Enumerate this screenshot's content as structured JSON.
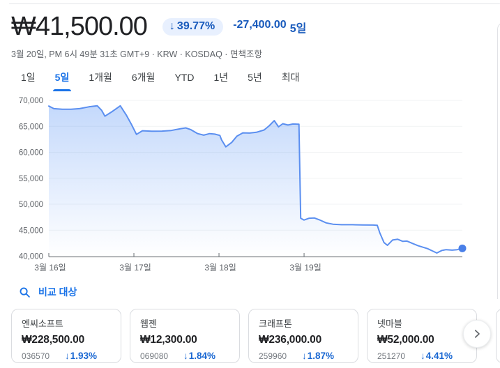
{
  "header": {
    "price": "₩41,500.00",
    "change_badge": {
      "arrow": "↓",
      "percent": "39.77%"
    },
    "change_amount": "-27,400.00",
    "change_period": "5일",
    "subtitle_main": "3월 20일, PM 6시 49분 31초 GMT+9 · KRW · KOSDAQ ·",
    "disclaimer_link": "면책조항"
  },
  "tabs": {
    "items": [
      {
        "label": "1일"
      },
      {
        "label": "5일",
        "active": true
      },
      {
        "label": "1개월"
      },
      {
        "label": "6개월"
      },
      {
        "label": "YTD"
      },
      {
        "label": "1년"
      },
      {
        "label": "5년"
      },
      {
        "label": "최대"
      }
    ]
  },
  "compare": {
    "title": "비교 대상",
    "search_icon": "magnifier",
    "next_button_icon": "chevron-right",
    "cards": [
      {
        "name": "엔씨소프트",
        "price": "₩228,500.00",
        "code": "036570",
        "arrow": "↓",
        "change": "1.93%"
      },
      {
        "name": "웹젠",
        "price": "₩12,300.00",
        "code": "069080",
        "arrow": "↓",
        "change": "1.84%"
      },
      {
        "name": "크래프톤",
        "price": "₩236,000.00",
        "code": "259960",
        "arrow": "↓",
        "change": "1.87%"
      },
      {
        "name": "넷마블",
        "price": "₩52,000.00",
        "code": "251270",
        "arrow": "↓",
        "change": "4.41%"
      }
    ]
  },
  "colors": {
    "accent_blue": "#1a73e8",
    "down_blue": "#185abc",
    "card_change_blue": "#1967d2",
    "badge_bg": "#e8f0fe",
    "text_dark": "#202124",
    "text_gray": "#5f6368"
  },
  "chart_data": {
    "type": "area",
    "title": "",
    "xlabel": "",
    "ylabel": "",
    "x_unit": "days (0 = 3월 16일 open)",
    "x_range": [
      0,
      4.86
    ],
    "ylim": [
      40000,
      70000
    ],
    "grid": true,
    "legend": "none",
    "y_ticks": [
      40000,
      45000,
      50000,
      55000,
      60000,
      65000,
      70000
    ],
    "x_ticks": [
      {
        "pos": 0,
        "label": "3월 16일"
      },
      {
        "pos": 1,
        "label": "3월 17일"
      },
      {
        "pos": 2,
        "label": "3월 18일"
      },
      {
        "pos": 3,
        "label": "3월 19일"
      }
    ],
    "points": [
      [
        0.0,
        68900
      ],
      [
        0.06,
        68400
      ],
      [
        0.16,
        68300
      ],
      [
        0.26,
        68300
      ],
      [
        0.36,
        68400
      ],
      [
        0.47,
        68750
      ],
      [
        0.57,
        68950
      ],
      [
        0.62,
        68100
      ],
      [
        0.66,
        66950
      ],
      [
        0.75,
        67900
      ],
      [
        0.84,
        68950
      ],
      [
        0.91,
        67200
      ],
      [
        0.97,
        65400
      ],
      [
        1.03,
        63450
      ],
      [
        1.1,
        64150
      ],
      [
        1.21,
        64050
      ],
      [
        1.33,
        64080
      ],
      [
        1.44,
        64200
      ],
      [
        1.55,
        64550
      ],
      [
        1.61,
        64700
      ],
      [
        1.67,
        64350
      ],
      [
        1.75,
        63600
      ],
      [
        1.82,
        63300
      ],
      [
        1.89,
        63600
      ],
      [
        1.95,
        63500
      ],
      [
        2.01,
        63250
      ],
      [
        2.03,
        62400
      ],
      [
        2.08,
        61050
      ],
      [
        2.15,
        61900
      ],
      [
        2.21,
        63100
      ],
      [
        2.28,
        63750
      ],
      [
        2.36,
        63700
      ],
      [
        2.44,
        63850
      ],
      [
        2.53,
        64300
      ],
      [
        2.59,
        65100
      ],
      [
        2.65,
        66100
      ],
      [
        2.7,
        64900
      ],
      [
        2.75,
        65500
      ],
      [
        2.81,
        65250
      ],
      [
        2.87,
        65450
      ],
      [
        2.94,
        65400
      ],
      [
        2.96,
        47300
      ],
      [
        3.0,
        46950
      ],
      [
        3.06,
        47300
      ],
      [
        3.12,
        47350
      ],
      [
        3.18,
        47000
      ],
      [
        3.26,
        46400
      ],
      [
        3.34,
        46150
      ],
      [
        3.44,
        46050
      ],
      [
        3.57,
        46050
      ],
      [
        3.69,
        46000
      ],
      [
        3.81,
        45980
      ],
      [
        3.86,
        45950
      ],
      [
        3.89,
        44500
      ],
      [
        3.94,
        42600
      ],
      [
        3.98,
        42100
      ],
      [
        4.04,
        43100
      ],
      [
        4.1,
        43250
      ],
      [
        4.16,
        42850
      ],
      [
        4.21,
        42900
      ],
      [
        4.28,
        42400
      ],
      [
        4.34,
        42000
      ],
      [
        4.4,
        41700
      ],
      [
        4.45,
        41450
      ],
      [
        4.51,
        41000
      ],
      [
        4.56,
        40600
      ],
      [
        4.62,
        41100
      ],
      [
        4.67,
        41250
      ],
      [
        4.74,
        41150
      ],
      [
        4.8,
        41250
      ],
      [
        4.86,
        41500
      ]
    ],
    "end_dot": true,
    "style": {
      "line_color": "#5b8ff0",
      "dot_color": "#4a80e8",
      "fill_top": "rgba(66,133,244,0.32)",
      "fill_bottom": "rgba(66,133,244,0)",
      "grid_color": "#f1f3f4",
      "axis_color": "#82878c",
      "tick_label_color": "#5f6368"
    }
  }
}
